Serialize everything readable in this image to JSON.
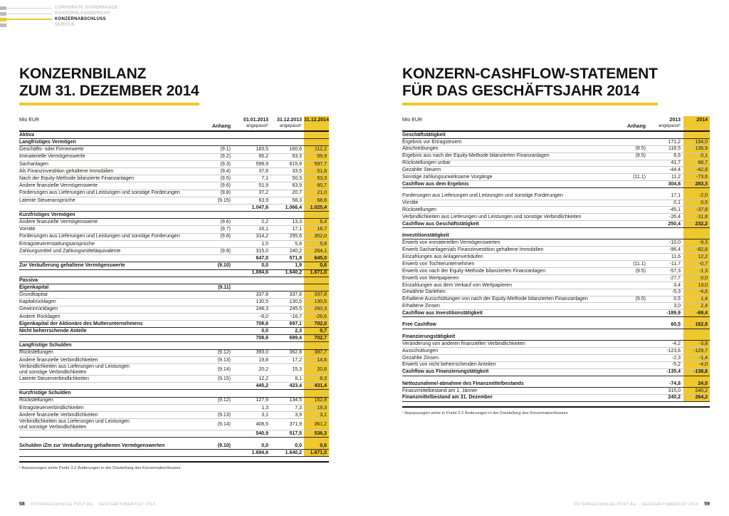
{
  "colors": {
    "accent_yellow": "#EFC72E"
  },
  "nav": {
    "items": [
      {
        "label": "CORPORATE GOVERNANCE",
        "active": false,
        "line": true
      },
      {
        "label": "KONZERNLAGEBERICHT",
        "active": false,
        "line": true
      },
      {
        "label": "KONZERNABSCHLUSS",
        "active": true,
        "line": true
      },
      {
        "label": "SERVICE",
        "active": false,
        "line": false
      }
    ]
  },
  "left_page": {
    "title_line1": "KONZERNBILANZ",
    "title_line2": "ZUM 31. DEZEMBER 2014",
    "table": {
      "unit": "Mio EUR",
      "anhang_header": "Anhang",
      "columns": [
        {
          "line1": "01.01.2013",
          "line2": "angepasst¹"
        },
        {
          "line1": "31.12.2013",
          "line2": "angepasst¹"
        },
        {
          "line1": "31.12.2014",
          "line2": ""
        }
      ],
      "rows": [
        {
          "style": "section",
          "label": "Aktiva"
        },
        {
          "style": "section",
          "label": "Langfristiges Vermögen"
        },
        {
          "style": "item",
          "label": "Geschäfts- oder Firmenwerte",
          "anhang": "(9.1)",
          "v": [
            "183,5",
            "160,6",
            "112,2"
          ]
        },
        {
          "style": "item",
          "label": "Immaterielle Vermögenswerte",
          "anhang": "(9.2)",
          "v": [
            "66,2",
            "63,3",
            "59,9"
          ]
        },
        {
          "style": "item",
          "label": "Sachanlagen",
          "anhang": "(9.3)",
          "v": [
            "599,9",
            "615,9",
            "597,7"
          ]
        },
        {
          "style": "item",
          "label": "Als Finanzinvestition gehaltene Immobilien",
          "anhang": "(9.4)",
          "v": [
            "37,8",
            "33,5",
            "51,8"
          ]
        },
        {
          "style": "item",
          "label": "Nach der Equity-Methode bilanzierte Finanzanlagen",
          "anhang": "(9.5)",
          "v": [
            "7,1",
            "50,3",
            "53,3"
          ]
        },
        {
          "style": "item",
          "label": "Andere finanzielle Vermögenswerte",
          "anhang": "(9.6)",
          "v": [
            "51,9",
            "63,9",
            "60,7"
          ]
        },
        {
          "style": "item",
          "label": "Forderungen aus Lieferungen und Leistungen und sonstige Forderungen",
          "anhang": "(9.8)",
          "v": [
            "37,2",
            "20,7",
            "21,0"
          ]
        },
        {
          "style": "item",
          "label": "Latente Steueransprüche",
          "anhang": "(9.15)",
          "v": [
            "63,9",
            "58,3",
            "68,6"
          ]
        },
        {
          "style": "sum",
          "v": [
            "1.047,6",
            "1.066,4",
            "1.025,4"
          ]
        },
        {
          "style": "section",
          "label": "Kurzfristiges Vermögen"
        },
        {
          "style": "item",
          "label": "Andere finanzielle Vermögenswerte",
          "anhang": "(9.6)",
          "v": [
            "0,2",
            "13,3",
            "6,4"
          ]
        },
        {
          "style": "item",
          "label": "Vorräte",
          "anhang": "(9.7)",
          "v": [
            "16,1",
            "17,1",
            "16,7"
          ]
        },
        {
          "style": "item",
          "label": "Forderungen aus Lieferungen und Leistungen und sonstige Forderungen",
          "anhang": "(9.8)",
          "v": [
            "314,2",
            "295,6",
            "352,0"
          ]
        },
        {
          "style": "item",
          "label": "Ertragsteuererstattungsansprüche",
          "v": [
            "1,5",
            "5,8",
            "5,8"
          ]
        },
        {
          "style": "item",
          "label": "Zahlungsmittel und Zahlungsmitteläquivalente",
          "anhang": "(9.9)",
          "v": [
            "315,0",
            "240,2",
            "264,1"
          ]
        },
        {
          "style": "sum",
          "v": [
            "647,0",
            "571,9",
            "645,0"
          ]
        },
        {
          "style": "bold",
          "label": "Zur Veräußerung gehaltene Vermögenswerte",
          "anhang": "(9.10)",
          "v": [
            "0,0",
            "1,9",
            "0,6"
          ]
        },
        {
          "style": "sum",
          "v": [
            "1.694,6",
            "1.640,2",
            "1.671,0"
          ]
        },
        {
          "style": "section",
          "label": "Passiva"
        },
        {
          "style": "section",
          "label": "Eigenkapital",
          "anhang": "(9.11)"
        },
        {
          "style": "item",
          "label": "Grundkapital",
          "v": [
            "337,8",
            "337,8",
            "337,8"
          ]
        },
        {
          "style": "item",
          "label": "Kapitalrücklagen",
          "v": [
            "130,5",
            "130,5",
            "130,5"
          ]
        },
        {
          "style": "item",
          "label": "Gewinnrücklagen",
          "v": [
            "248,3",
            "245,5",
            "260,3"
          ]
        },
        {
          "style": "item",
          "label": "Andere Rücklagen",
          "v": [
            "-6,0",
            "-16,7",
            "-26,6"
          ]
        },
        {
          "style": "bold",
          "label": "Eigenkapital der Aktionäre des Mutterunternehmens",
          "v": [
            "708,6",
            "697,1",
            "702,0"
          ]
        },
        {
          "style": "bold",
          "label": "Nicht beherrschende Anteile",
          "v": [
            "0,0",
            "2,3",
            "0,7"
          ]
        },
        {
          "style": "sum",
          "v": [
            "708,6",
            "699,4",
            "702,7"
          ]
        },
        {
          "style": "section",
          "label": "Langfristige Schulden"
        },
        {
          "style": "item",
          "label": "Rückstellungen",
          "anhang": "(9.12)",
          "v": [
            "393,0",
            "362,8",
            "387,7"
          ]
        },
        {
          "style": "item",
          "label": "Andere finanzielle Verbindlichkeiten",
          "anhang": "(9.13)",
          "v": [
            "19,8",
            "17,2",
            "14,6"
          ]
        },
        {
          "style": "item",
          "label": "Verbindlichkeiten aus Lieferungen und Leistungen",
          "label2": "und sonstige Verbindlichkeiten",
          "anhang": "(9.14)",
          "v": [
            "20,2",
            "15,3",
            "20,8"
          ]
        },
        {
          "style": "item",
          "label": "Latente Steuerverbindlichkeiten",
          "anhang": "(9.15)",
          "v": [
            "12,2",
            "8,1",
            "8,3"
          ]
        },
        {
          "style": "sum",
          "v": [
            "445,2",
            "423,4",
            "431,4"
          ]
        },
        {
          "style": "section",
          "label": "Kurzfristige Schulden"
        },
        {
          "style": "item",
          "label": "Rückstellungen",
          "anhang": "(9.12)",
          "v": [
            "127,9",
            "134,5",
            "152,8"
          ]
        },
        {
          "style": "item",
          "label": "Ertragsteuerverbindlichkeiten",
          "v": [
            "1,3",
            "7,3",
            "19,3"
          ]
        },
        {
          "style": "item",
          "label": "Andere finanzielle Verbindlichkeiten",
          "anhang": "(9.13)",
          "v": [
            "3,1",
            "3,9",
            "3,1"
          ]
        },
        {
          "style": "item",
          "label": "Verbindlichkeiten aus Lieferungen und Leistungen",
          "label2": "und sonstige Verbindlichkeiten",
          "anhang": "(9.14)",
          "v": [
            "408,5",
            "371,9",
            "361,2"
          ]
        },
        {
          "style": "sum",
          "v": [
            "540,9",
            "517,5",
            "536,3"
          ]
        },
        {
          "style": "gap"
        },
        {
          "style": "bold",
          "label": "Schulden iZm zur Veräußerung gehaltenen Vermögenswerten",
          "anhang": "(9.10)",
          "v": [
            "0,0",
            "0,0",
            "0,6"
          ]
        },
        {
          "style": "sum",
          "v": [
            "1.694,6",
            "1.640,2",
            "1.671,0"
          ]
        }
      ]
    },
    "footnote": "¹ Anpassungen siehe Punkt 3.2 Änderungen in der Darstellung des Konzernabschlusses"
  },
  "right_page": {
    "title_line1": "KONZERN-CASHFLOW-STATEMENT",
    "title_line2": "FÜR DAS GESCHÄFTSJAHR 2014",
    "table": {
      "unit": "Mio EUR",
      "anhang_header": "Anhang",
      "columns": [
        {
          "line1": "2013",
          "line2": "angepasst¹"
        },
        {
          "line1": "2014",
          "line2": ""
        }
      ],
      "rows": [
        {
          "style": "section",
          "label": "Geschäftstätigkeit"
        },
        {
          "style": "item",
          "label": "Ergebnis vor Ertragsteuern",
          "v": [
            "171,2",
            "194,0"
          ]
        },
        {
          "style": "item",
          "label": "Abschreibungen",
          "anhang": "(8.5)",
          "v": [
            "118,5",
            "136,9"
          ]
        },
        {
          "style": "item",
          "label": "Ergebnis aus nach der Equity-Methode bilanzierten Finanzanlagen",
          "anhang": "(9.5)",
          "v": [
            "6,6",
            "0,1"
          ]
        },
        {
          "style": "item",
          "label": "Rückstellungen unbar",
          "v": [
            "41,7",
            "68,7"
          ]
        },
        {
          "style": "item",
          "label": "Gezahlte Steuern",
          "v": [
            "-44,4",
            "-42,8"
          ]
        },
        {
          "style": "item",
          "label": "Sonstige zahlungsunwirksame Vorgänge",
          "anhang": "(11.1)",
          "v": [
            "11,2",
            "-73,6"
          ]
        },
        {
          "style": "bold",
          "label": "Cashflow aus dem Ergebnis",
          "v": [
            "304,8",
            "283,3"
          ]
        },
        {
          "style": "gap"
        },
        {
          "style": "item",
          "label": "Forderungen aus Lieferungen und Leistungen und sonstige Forderungen",
          "v": [
            "17,1",
            "-2,0"
          ]
        },
        {
          "style": "item",
          "label": "Vorräte",
          "v": [
            "0,1",
            "0,5"
          ]
        },
        {
          "style": "item",
          "label": "Rückstellungen",
          "v": [
            "-45,1",
            "-37,8"
          ]
        },
        {
          "style": "item",
          "label": "Verbindlichkeiten aus Lieferungen und Leistungen und sonstige Verbindlichkeiten",
          "v": [
            "-26,4",
            "-11,8"
          ]
        },
        {
          "style": "bold",
          "label": "Cashflow aus Geschäftstätigkeit",
          "v": [
            "250,4",
            "232,2"
          ]
        },
        {
          "style": "gap"
        },
        {
          "style": "section",
          "label": "Investitionstätigkeit"
        },
        {
          "style": "item",
          "label": "Erwerb von immateriellen Vermögenswerten",
          "v": [
            "-10,0",
            "-9,3"
          ]
        },
        {
          "style": "item",
          "label": "Erwerb Sachanlagen/als Finanzinvestition gehaltene Immobilien",
          "v": [
            "-96,4",
            "-82,6"
          ]
        },
        {
          "style": "item",
          "label": "Einzahlungen aus Anlagenverkäufen",
          "v": [
            "11,6",
            "12,2"
          ]
        },
        {
          "style": "item",
          "label": "Erwerb von Tochterunternehmen",
          "anhang": "(11.1)",
          "v": [
            "-11,7",
            "-0,7"
          ]
        },
        {
          "style": "item",
          "label": "Erwerb von nach der Equity-Methode bilanzierten Finanzanlagen",
          "anhang": "(9.5)",
          "v": [
            "-57,3",
            "-1,3"
          ]
        },
        {
          "style": "item",
          "label": "Erwerb von Wertpapieren",
          "v": [
            "-27,7",
            "0,0"
          ]
        },
        {
          "style": "item",
          "label": "Einzahlungen aus dem Verkauf von Wertpapieren",
          "v": [
            "3,4",
            "13,0"
          ]
        },
        {
          "style": "item",
          "label": "Gewährte Darlehen",
          "v": [
            "-5,3",
            "-4,6"
          ]
        },
        {
          "style": "item",
          "label": "Erhaltene Ausschüttungen von nach der Equity-Methode bilanzierten Finanzanlagen",
          "anhang": "(9.5)",
          "v": [
            "0,5",
            "1,4"
          ]
        },
        {
          "style": "item",
          "label": "Erhaltene Zinsen",
          "v": [
            "3,0",
            "2,4"
          ]
        },
        {
          "style": "bold",
          "label": "Cashflow aus Investitionstätigkeit",
          "v": [
            "-189,9",
            "-69,4"
          ]
        },
        {
          "style": "gap"
        },
        {
          "style": "bold",
          "label": "Free Cashflow",
          "v": [
            "60,5",
            "162,8"
          ]
        },
        {
          "style": "gap"
        },
        {
          "style": "section",
          "label": "Finanzierungstätigkeit"
        },
        {
          "style": "item",
          "label": "Veränderung von anderen finanziellen Verbindlichkeiten",
          "v": [
            "-4,2",
            "-3,8"
          ]
        },
        {
          "style": "item",
          "label": "Ausschüttungen",
          "v": [
            "-123,6",
            "-129,7"
          ]
        },
        {
          "style": "item",
          "label": "Gezahlte Zinsen",
          "v": [
            "-2,3",
            "-1,4"
          ]
        },
        {
          "style": "item",
          "label": "Erwerb von nicht beherrschenden Anteilen",
          "v": [
            "-5,2",
            "-4,0"
          ]
        },
        {
          "style": "bold",
          "label": "Cashflow aus Finanzierungstätigkeit",
          "v": [
            "-135,4",
            "-138,8"
          ]
        },
        {
          "style": "gap"
        },
        {
          "style": "bold",
          "label": "Nettozunahme/-abnahme des Finanzmittelbestands",
          "v": [
            "-74,8",
            "24,0"
          ]
        },
        {
          "style": "item",
          "label": "Finanzmittelbestand am 1. Jänner",
          "v": [
            "315,0",
            "240,2"
          ]
        },
        {
          "style": "bold",
          "label": "Finanzmittelbestand am 31. Dezember",
          "v": [
            "240,2",
            "264,2"
          ]
        }
      ]
    },
    "footnote": "¹ Anpassungen siehe in Punkt 3.2 Änderungen in der Darstellung des Konzernabschlusses"
  },
  "footer": {
    "page_left": "58",
    "page_right": "59",
    "brand": "ÖSTERREICHISCHE POST AG",
    "report": "GESCHÄFTSBERICHT 2014"
  }
}
